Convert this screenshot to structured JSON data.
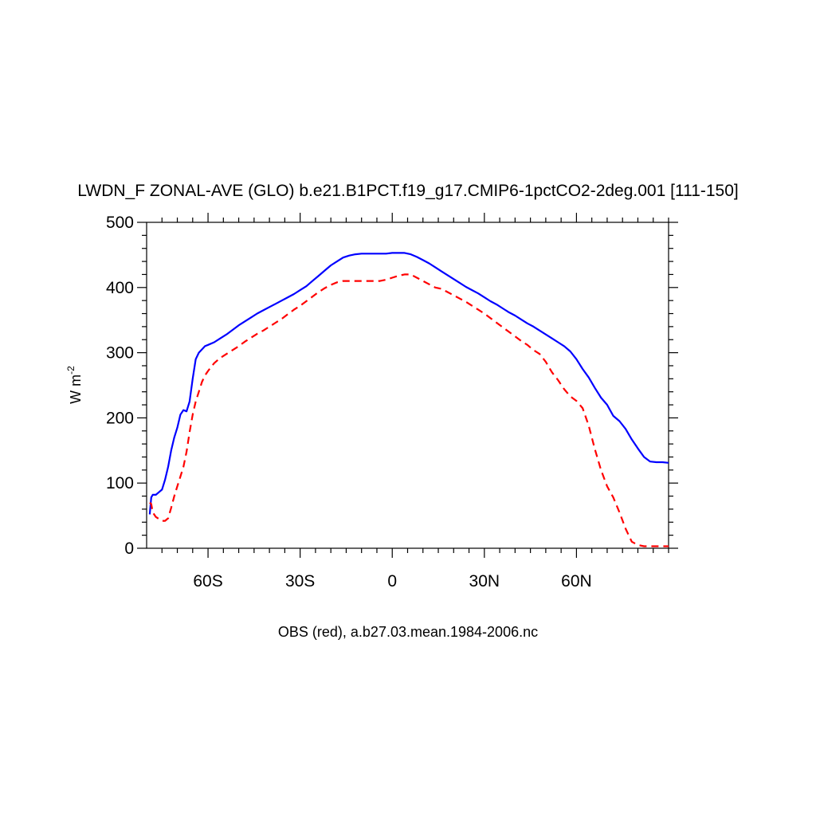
{
  "chart_data": {
    "type": "line",
    "title": "LWDN_F ZONAL-AVE (GLO) b.e21.B1PCT.f19_g17.CMIP6-1pctCO2-2deg.001 [111-150]",
    "xlabel": "OBS (red), a.b27.03.mean.1984-2006.nc",
    "ylabel": "W m",
    "ylabel_superscript": "-2",
    "xlim": [
      -80,
      90
    ],
    "ylim": [
      0,
      500
    ],
    "x_ticks": [
      {
        "value": -60,
        "label": "60S"
      },
      {
        "value": -30,
        "label": "30S"
      },
      {
        "value": 0,
        "label": "0"
      },
      {
        "value": 30,
        "label": "30N"
      },
      {
        "value": 60,
        "label": "60N"
      }
    ],
    "y_ticks": [
      0,
      100,
      200,
      300,
      400,
      500
    ],
    "grid": false,
    "series": [
      {
        "color": "#0000ff",
        "dash": "solid",
        "x": [
          -79,
          -78.5,
          -78,
          -77,
          -76,
          -75,
          -74,
          -73,
          -72,
          -71,
          -70,
          -69,
          -68,
          -67,
          -66,
          -65,
          -64,
          -63,
          -62,
          -61,
          -60,
          -58,
          -56,
          -54,
          -52,
          -50,
          -48,
          -46,
          -44,
          -42,
          -40,
          -38,
          -36,
          -34,
          -32,
          -30,
          -28,
          -26,
          -24,
          -22,
          -20,
          -18,
          -16,
          -14,
          -12,
          -10,
          -8,
          -6,
          -4,
          -2,
          0,
          2,
          4,
          6,
          8,
          10,
          12,
          14,
          16,
          18,
          20,
          22,
          24,
          26,
          28,
          30,
          32,
          34,
          36,
          38,
          40,
          42,
          44,
          46,
          48,
          50,
          52,
          54,
          56,
          58,
          60,
          62,
          64,
          66,
          68,
          70,
          72,
          74,
          76,
          78,
          80,
          82,
          84,
          86,
          88,
          90
        ],
        "y": [
          52,
          78,
          82,
          82,
          86,
          90,
          105,
          125,
          150,
          170,
          185,
          205,
          212,
          210,
          225,
          260,
          290,
          300,
          305,
          310,
          312,
          316,
          322,
          328,
          335,
          342,
          348,
          354,
          360,
          365,
          370,
          375,
          380,
          385,
          390,
          396,
          402,
          410,
          418,
          426,
          434,
          440,
          446,
          449,
          451,
          452,
          452,
          452,
          452,
          452,
          453,
          453,
          453,
          451,
          447,
          442,
          437,
          431,
          425,
          419,
          413,
          407,
          401,
          396,
          391,
          385,
          379,
          374,
          368,
          362,
          357,
          351,
          345,
          340,
          334,
          328,
          322,
          316,
          310,
          302,
          290,
          275,
          262,
          246,
          231,
          220,
          203,
          195,
          183,
          167,
          153,
          140,
          133,
          132,
          132,
          131
        ]
      },
      {
        "color": "#ff0000",
        "dash": "dashed",
        "x": [
          -79,
          -78.5,
          -78,
          -77,
          -76,
          -75,
          -74,
          -73,
          -72,
          -71,
          -70,
          -69,
          -68,
          -67,
          -66,
          -65,
          -64,
          -63,
          -62,
          -61,
          -60,
          -58,
          -56,
          -54,
          -52,
          -50,
          -48,
          -46,
          -44,
          -42,
          -40,
          -38,
          -36,
          -34,
          -32,
          -30,
          -28,
          -26,
          -24,
          -22,
          -20,
          -18,
          -16,
          -14,
          -12,
          -10,
          -8,
          -6,
          -4,
          -2,
          0,
          2,
          4,
          6,
          8,
          10,
          12,
          14,
          16,
          18,
          20,
          22,
          24,
          26,
          28,
          30,
          32,
          34,
          36,
          38,
          40,
          42,
          44,
          46,
          48,
          50,
          52,
          54,
          56,
          58,
          60,
          62,
          64,
          66,
          68,
          70,
          72,
          74,
          76,
          78,
          80,
          82,
          84,
          86,
          88,
          90
        ],
        "y": [
          70,
          68,
          55,
          48,
          45,
          42,
          42,
          46,
          62,
          80,
          95,
          110,
          125,
          148,
          178,
          205,
          225,
          240,
          255,
          265,
          272,
          284,
          292,
          298,
          304,
          310,
          317,
          323,
          329,
          334,
          340,
          346,
          352,
          359,
          366,
          372,
          379,
          386,
          393,
          399,
          404,
          408,
          410,
          410,
          410,
          410,
          410,
          410,
          410,
          412,
          415,
          418,
          420,
          420,
          415,
          410,
          405,
          400,
          398,
          393,
          388,
          383,
          378,
          372,
          366,
          360,
          353,
          346,
          339,
          332,
          325,
          318,
          312,
          304,
          298,
          286,
          270,
          258,
          244,
          233,
          226,
          215,
          188,
          152,
          120,
          95,
          78,
          55,
          30,
          10,
          5,
          3,
          3,
          3,
          3,
          3
        ]
      }
    ]
  }
}
